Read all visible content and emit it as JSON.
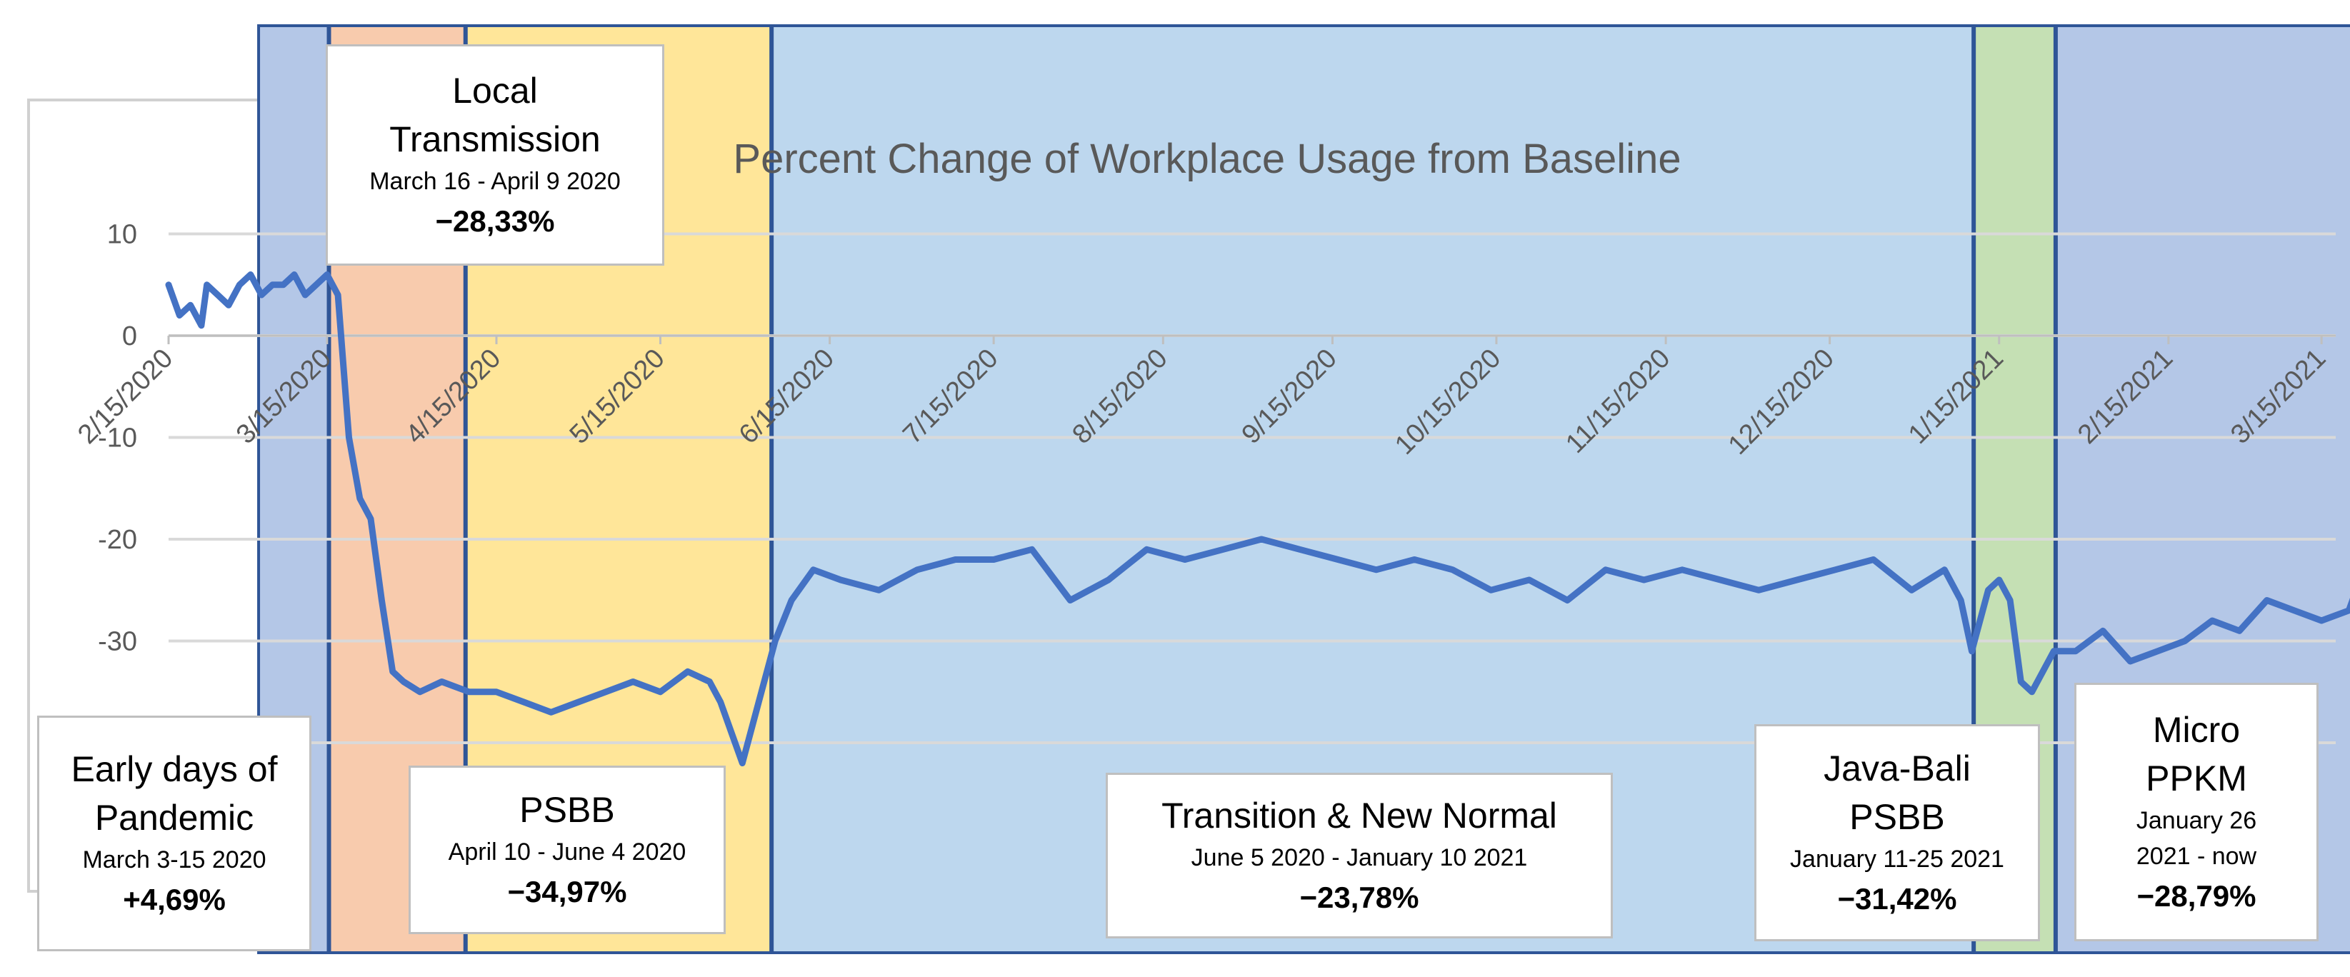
{
  "chart_data": {
    "type": "line",
    "title": "Percent Change of Workplace Usage from Baseline",
    "xlabel": "",
    "ylabel": "",
    "ylim": [
      -40,
      10
    ],
    "y_ticks": [
      "10",
      "0",
      "-10",
      "-20",
      "-30"
    ],
    "x_ticks": [
      "2/15/2020",
      "3/15/2020",
      "4/15/2020",
      "5/15/2020",
      "6/15/2020",
      "7/15/2020",
      "8/15/2020",
      "9/15/2020",
      "10/15/2020",
      "11/15/2020",
      "12/15/2020",
      "1/15/2021",
      "2/15/2021",
      "3/15/2021"
    ],
    "grid": true,
    "x": [
      "2020-02-15",
      "2020-02-17",
      "2020-02-19",
      "2020-02-21",
      "2020-02-22",
      "2020-02-24",
      "2020-02-26",
      "2020-02-28",
      "2020-03-01",
      "2020-03-03",
      "2020-03-05",
      "2020-03-07",
      "2020-03-09",
      "2020-03-11",
      "2020-03-13",
      "2020-03-15",
      "2020-03-17",
      "2020-03-19",
      "2020-03-21",
      "2020-03-23",
      "2020-03-25",
      "2020-03-27",
      "2020-03-29",
      "2020-04-01",
      "2020-04-05",
      "2020-04-10",
      "2020-04-15",
      "2020-04-20",
      "2020-04-25",
      "2020-04-30",
      "2020-05-05",
      "2020-05-10",
      "2020-05-15",
      "2020-05-20",
      "2020-05-24",
      "2020-05-26",
      "2020-05-28",
      "2020-05-30",
      "2020-06-02",
      "2020-06-05",
      "2020-06-08",
      "2020-06-12",
      "2020-06-17",
      "2020-06-24",
      "2020-07-01",
      "2020-07-08",
      "2020-07-15",
      "2020-07-22",
      "2020-07-29",
      "2020-08-05",
      "2020-08-12",
      "2020-08-19",
      "2020-08-26",
      "2020-09-02",
      "2020-09-09",
      "2020-09-16",
      "2020-09-23",
      "2020-09-30",
      "2020-10-07",
      "2020-10-14",
      "2020-10-21",
      "2020-10-28",
      "2020-11-04",
      "2020-11-11",
      "2020-11-18",
      "2020-11-25",
      "2020-12-02",
      "2020-12-09",
      "2020-12-16",
      "2020-12-23",
      "2020-12-30",
      "2021-01-05",
      "2021-01-08",
      "2021-01-10",
      "2021-01-13",
      "2021-01-15",
      "2021-01-17",
      "2021-01-19",
      "2021-01-21",
      "2021-01-23",
      "2021-01-25",
      "2021-01-29",
      "2021-02-03",
      "2021-02-08",
      "2021-02-13",
      "2021-02-18",
      "2021-02-23",
      "2021-02-28",
      "2021-03-05",
      "2021-03-10",
      "2021-03-15",
      "2021-03-20",
      "2021-03-22"
    ],
    "series": [
      {
        "values": [
          5,
          2,
          3,
          1,
          5,
          4,
          3,
          5,
          6,
          4,
          5,
          5,
          6,
          4,
          5,
          6,
          4,
          -10,
          -16,
          -18,
          -26,
          -33,
          -34,
          -35,
          -34,
          -35,
          -35,
          -36,
          -37,
          -36,
          -35,
          -34,
          -35,
          -33,
          -34,
          -36,
          -39,
          -42,
          -36,
          -30,
          -26,
          -23,
          -24,
          -25,
          -23,
          -22,
          -22,
          -21,
          -26,
          -24,
          -21,
          -22,
          -21,
          -20,
          -21,
          -22,
          -23,
          -22,
          -23,
          -25,
          -24,
          -26,
          -23,
          -24,
          -23,
          -24,
          -25,
          -24,
          -23,
          -22,
          -25,
          -23,
          -26,
          -31,
          -25,
          -24,
          -26,
          -34,
          -35,
          -33,
          -31,
          -31,
          -29,
          -32,
          -31,
          -30,
          -28,
          -29,
          -26,
          -27,
          -28,
          -27,
          -24
        ]
      }
    ],
    "bands": [
      {
        "start": "2020-03-03",
        "end": "2020-03-15",
        "color": "#B4C7E7"
      },
      {
        "start": "2020-03-16",
        "end": "2020-04-09",
        "color": "#F8CBAD"
      },
      {
        "start": "2020-04-10",
        "end": "2020-06-04",
        "color": "#FFE699"
      },
      {
        "start": "2020-06-05",
        "end": "2021-01-10",
        "color": "#BDD7EE"
      },
      {
        "start": "2021-01-11",
        "end": "2021-01-25",
        "color": "#C5E0B4"
      },
      {
        "start": "2021-01-26",
        "end": "2021-03-22",
        "color": "#B4C7E7"
      }
    ],
    "colors": {
      "line": "#4472C4",
      "band_border": "#2F5597",
      "grid": "#d9d9d9",
      "text": "#595959"
    }
  },
  "annotations": [
    {
      "phase": "Early days of Pandemic",
      "dates": "March 3-15 2020",
      "percent": "+4,69%"
    },
    {
      "phase": "Local Transmission",
      "dates": "March 16 - April 9 2020",
      "percent": "−28,33%"
    },
    {
      "phase": "PSBB",
      "dates": "April 10 - June 4 2020",
      "percent": "−34,97%"
    },
    {
      "phase": "Transition & New Normal",
      "dates": "June 5 2020 - January 10 2021",
      "percent": "−23,78%"
    },
    {
      "phase": "Java-Bali PSBB",
      "dates": "January 11-25 2021",
      "percent": "−31,42%"
    },
    {
      "phase": "Micro PPKM",
      "dates": "January 26 2021 -  now",
      "percent": "−28,79%"
    }
  ]
}
